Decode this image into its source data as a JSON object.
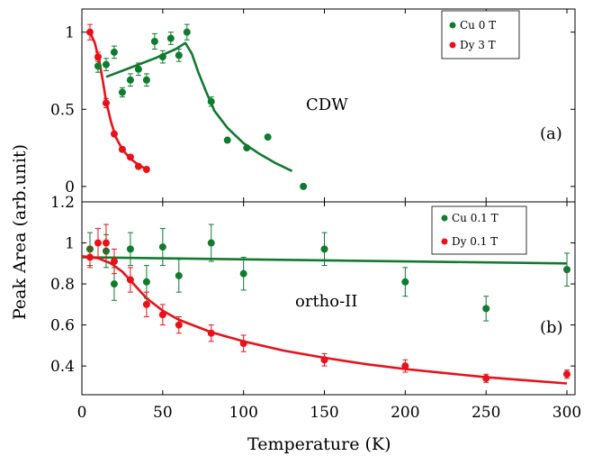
{
  "chart_data": [
    {
      "type": "scatter",
      "panel_label": "(a)",
      "annotation": "CDW",
      "ylabel": "Peak Area (arb.unit)",
      "xlabel": "Temperature (K)",
      "xlim": [
        0,
        305
      ],
      "ylim": [
        -0.1,
        1.15
      ],
      "yticks": [
        "0",
        "0.5",
        "1"
      ],
      "ytick_values": [
        0,
        0.5,
        1
      ],
      "legend_position": "top-right",
      "series": [
        {
          "name": "Cu 0 T",
          "color": "#107a2f",
          "points": [
            {
              "x": 10,
              "y": 0.78,
              "err": 0.04
            },
            {
              "x": 15,
              "y": 0.79,
              "err": 0.04
            },
            {
              "x": 20,
              "y": 0.87,
              "err": 0.04
            },
            {
              "x": 25,
              "y": 0.61,
              "err": 0.03
            },
            {
              "x": 30,
              "y": 0.69,
              "err": 0.04
            },
            {
              "x": 35,
              "y": 0.76,
              "err": 0.04
            },
            {
              "x": 40,
              "y": 0.69,
              "err": 0.04
            },
            {
              "x": 45,
              "y": 0.94,
              "err": 0.05
            },
            {
              "x": 50,
              "y": 0.84,
              "err": 0.04
            },
            {
              "x": 55,
              "y": 0.96,
              "err": 0.04
            },
            {
              "x": 60,
              "y": 0.85,
              "err": 0.04
            },
            {
              "x": 65,
              "y": 1.0,
              "err": 0.05
            },
            {
              "x": 80,
              "y": 0.55,
              "err": 0.03
            },
            {
              "x": 90,
              "y": 0.3,
              "err": 0.0
            },
            {
              "x": 102,
              "y": 0.25,
              "err": 0.0
            },
            {
              "x": 115,
              "y": 0.32,
              "err": 0.0
            },
            {
              "x": 137,
              "y": 0.0,
              "err": 0.0
            }
          ],
          "fit": [
            [
              15,
              0.71
            ],
            [
              30,
              0.77
            ],
            [
              45,
              0.83
            ],
            [
              58,
              0.89
            ],
            [
              64,
              0.93
            ],
            [
              68,
              0.86
            ],
            [
              72,
              0.74
            ],
            [
              77,
              0.61
            ],
            [
              82,
              0.49
            ],
            [
              90,
              0.38
            ],
            [
              100,
              0.28
            ],
            [
              110,
              0.21
            ],
            [
              120,
              0.15
            ],
            [
              130,
              0.1
            ]
          ]
        },
        {
          "name": "Dy 3 T",
          "color": "#e8111a",
          "points": [
            {
              "x": 5,
              "y": 1.0,
              "err": 0.05
            },
            {
              "x": 10,
              "y": 0.84,
              "err": 0.03
            },
            {
              "x": 15,
              "y": 0.54,
              "err": 0.03
            },
            {
              "x": 20,
              "y": 0.34,
              "err": 0.0
            },
            {
              "x": 25,
              "y": 0.24,
              "err": 0.0
            },
            {
              "x": 30,
              "y": 0.19,
              "err": 0.0
            },
            {
              "x": 35,
              "y": 0.13,
              "err": 0.0
            },
            {
              "x": 40,
              "y": 0.11,
              "err": 0.0
            }
          ],
          "fit": [
            [
              5,
              1.0
            ],
            [
              8,
              0.93
            ],
            [
              11,
              0.8
            ],
            [
              13,
              0.68
            ],
            [
              15,
              0.55
            ],
            [
              18,
              0.42
            ],
            [
              21,
              0.32
            ],
            [
              25,
              0.24
            ],
            [
              30,
              0.18
            ],
            [
              35,
              0.14
            ],
            [
              40,
              0.11
            ]
          ]
        }
      ]
    },
    {
      "type": "scatter",
      "panel_label": "(b)",
      "annotation": "ortho-II",
      "ylabel": "Peak Area (arb.unit)",
      "xlabel": "Temperature (K)",
      "xlim": [
        0,
        305
      ],
      "ylim": [
        0.26,
        1.2
      ],
      "yticks": [
        "0.4",
        "0.6",
        "0.8",
        "1",
        "1.2"
      ],
      "ytick_values": [
        0.4,
        0.6,
        0.8,
        1.0,
        1.2
      ],
      "xticks": [
        "0",
        "50",
        "100",
        "150",
        "200",
        "250",
        "300"
      ],
      "xtick_values": [
        0,
        50,
        100,
        150,
        200,
        250,
        300
      ],
      "legend_position": "top-right",
      "series": [
        {
          "name": "Cu 0.1 T",
          "color": "#107a2f",
          "points": [
            {
              "x": 5,
              "y": 0.97,
              "err": 0.08
            },
            {
              "x": 15,
              "y": 0.96,
              "err": 0.08
            },
            {
              "x": 20,
              "y": 0.8,
              "err": 0.08
            },
            {
              "x": 30,
              "y": 0.97,
              "err": 0.08
            },
            {
              "x": 40,
              "y": 0.81,
              "err": 0.08
            },
            {
              "x": 50,
              "y": 0.98,
              "err": 0.09
            },
            {
              "x": 60,
              "y": 0.84,
              "err": 0.08
            },
            {
              "x": 80,
              "y": 1.0,
              "err": 0.09
            },
            {
              "x": 100,
              "y": 0.85,
              "err": 0.08
            },
            {
              "x": 150,
              "y": 0.97,
              "err": 0.08
            },
            {
              "x": 200,
              "y": 0.81,
              "err": 0.07
            },
            {
              "x": 250,
              "y": 0.68,
              "err": 0.06
            },
            {
              "x": 300,
              "y": 0.87,
              "err": 0.08
            }
          ],
          "fit": [
            [
              0,
              0.93
            ],
            [
              300,
              0.9
            ]
          ]
        },
        {
          "name": "Dy 0.1 T",
          "color": "#e8111a",
          "points": [
            {
              "x": 5,
              "y": 0.93,
              "err": 0.05
            },
            {
              "x": 10,
              "y": 1.0,
              "err": 0.07
            },
            {
              "x": 15,
              "y": 1.0,
              "err": 0.09
            },
            {
              "x": 20,
              "y": 0.91,
              "err": 0.06
            },
            {
              "x": 30,
              "y": 0.82,
              "err": 0.06
            },
            {
              "x": 40,
              "y": 0.7,
              "err": 0.06
            },
            {
              "x": 50,
              "y": 0.65,
              "err": 0.05
            },
            {
              "x": 60,
              "y": 0.6,
              "err": 0.04
            },
            {
              "x": 80,
              "y": 0.56,
              "err": 0.04
            },
            {
              "x": 100,
              "y": 0.51,
              "err": 0.04
            },
            {
              "x": 150,
              "y": 0.43,
              "err": 0.03
            },
            {
              "x": 200,
              "y": 0.4,
              "err": 0.03
            },
            {
              "x": 250,
              "y": 0.34,
              "err": 0.02
            },
            {
              "x": 300,
              "y": 0.36,
              "err": 0.02
            }
          ],
          "fit": [
            [
              0,
              0.935
            ],
            [
              10,
              0.925
            ],
            [
              18,
              0.9
            ],
            [
              25,
              0.86
            ],
            [
              32,
              0.8
            ],
            [
              40,
              0.73
            ],
            [
              50,
              0.67
            ],
            [
              60,
              0.625
            ],
            [
              80,
              0.565
            ],
            [
              100,
              0.52
            ],
            [
              125,
              0.475
            ],
            [
              150,
              0.44
            ],
            [
              175,
              0.41
            ],
            [
              200,
              0.385
            ],
            [
              225,
              0.365
            ],
            [
              250,
              0.345
            ],
            [
              275,
              0.33
            ],
            [
              300,
              0.315
            ]
          ]
        }
      ]
    }
  ]
}
